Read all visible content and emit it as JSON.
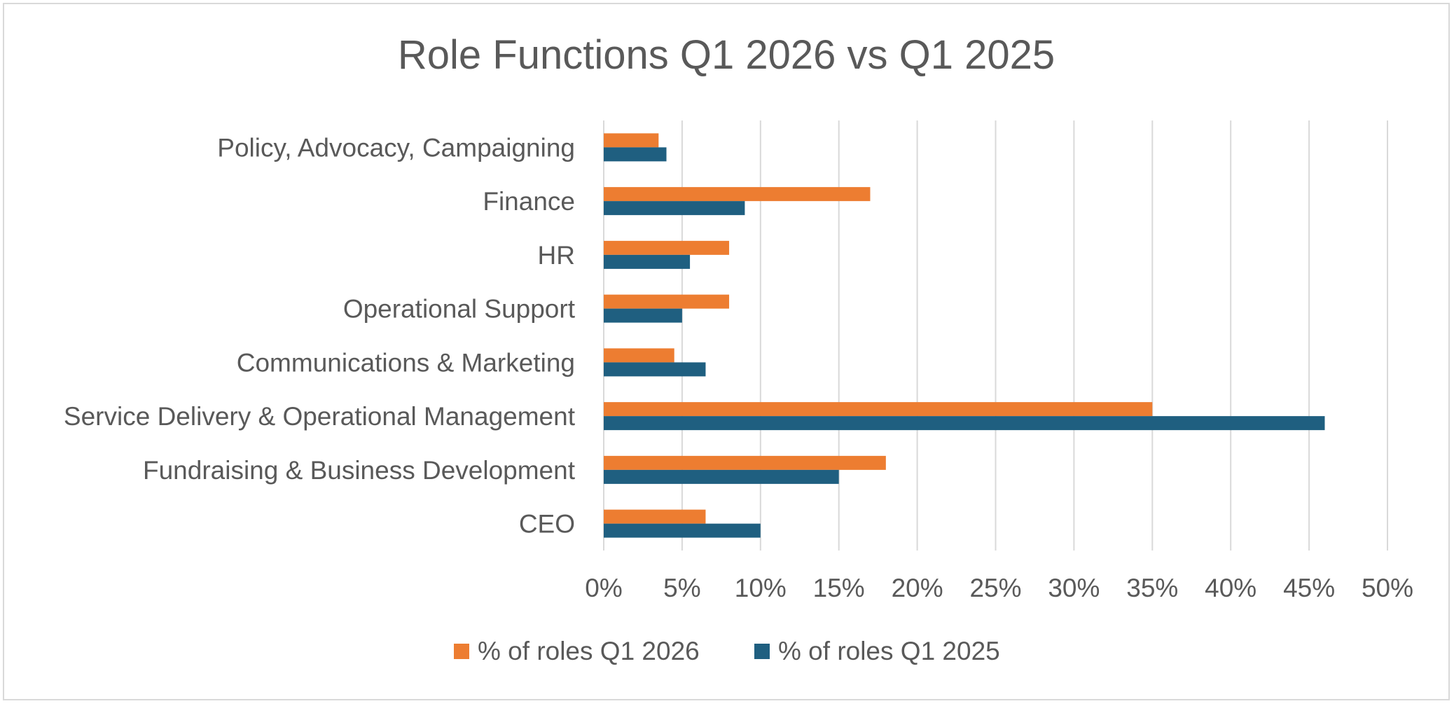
{
  "chart_data": {
    "type": "bar",
    "orientation": "horizontal",
    "title": "Role Functions Q1 2026 vs Q1 2025",
    "xlabel": "",
    "ylabel": "",
    "categories": [
      "CEO",
      "Fundraising & Business Development",
      "Service Delivery & Operational Management",
      "Communications & Marketing",
      "Operational Support",
      "HR",
      "Finance",
      "Policy, Advocacy, Campaigning"
    ],
    "series": [
      {
        "name": "% of roles Q1 2026",
        "color": "#ED7D31",
        "values": [
          6.5,
          18,
          35,
          4.5,
          8,
          8,
          17,
          3.5
        ]
      },
      {
        "name": "% of roles Q1 2025",
        "color": "#1F5F80",
        "values": [
          10,
          15,
          46,
          6.5,
          5,
          5.5,
          9,
          4
        ]
      }
    ],
    "xlim": [
      0,
      50
    ],
    "x_ticks": [
      0,
      5,
      10,
      15,
      20,
      25,
      30,
      35,
      40,
      45,
      50
    ],
    "x_tick_labels": [
      "0%",
      "5%",
      "10%",
      "15%",
      "20%",
      "25%",
      "30%",
      "35%",
      "40%",
      "45%",
      "50%"
    ],
    "grid": "vertical",
    "legend": "bottom",
    "gridline_color": "#d9d9d9"
  }
}
